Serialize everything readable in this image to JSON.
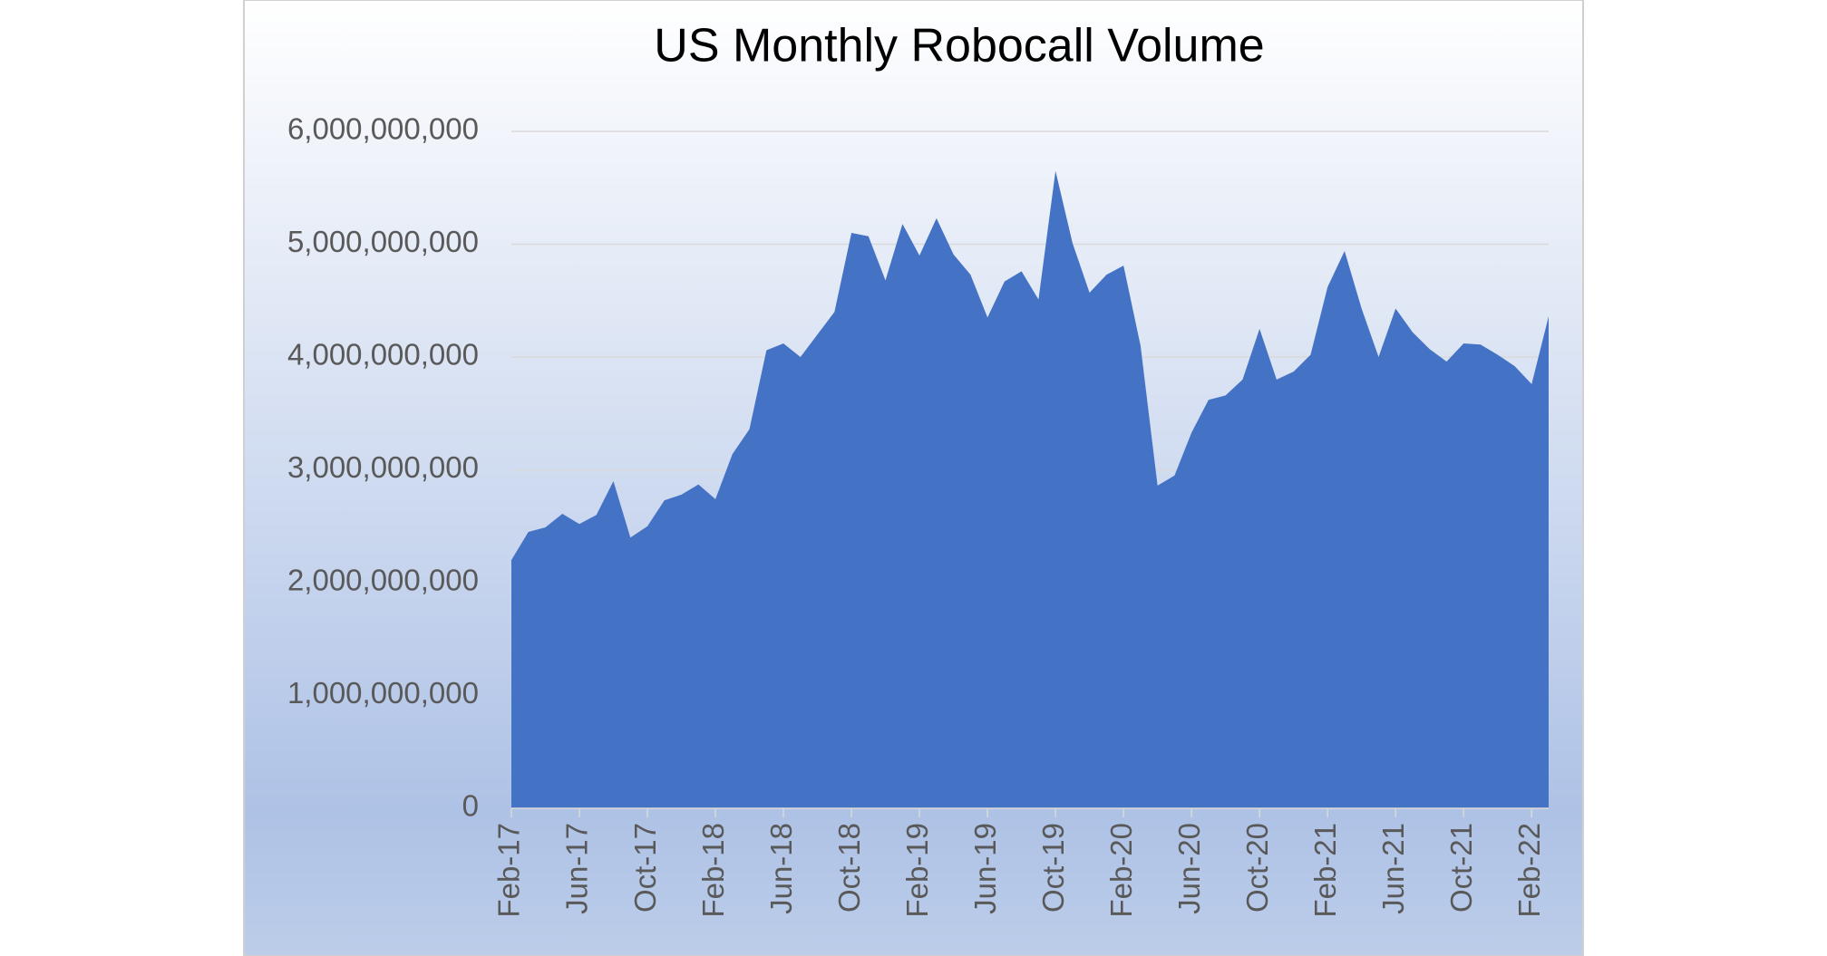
{
  "chart_data": {
    "type": "area",
    "title": "US Monthly Robocall Volume",
    "categories": [
      "Feb-17",
      null,
      null,
      null,
      "Jun-17",
      null,
      null,
      null,
      "Oct-17",
      null,
      null,
      null,
      "Feb-18",
      null,
      null,
      null,
      "Jun-18",
      null,
      null,
      null,
      "Oct-18",
      null,
      null,
      null,
      "Feb-19",
      null,
      null,
      null,
      "Jun-19",
      null,
      null,
      null,
      "Oct-19",
      null,
      null,
      null,
      "Feb-20",
      null,
      null,
      null,
      "Jun-20",
      null,
      null,
      null,
      "Oct-20",
      null,
      null,
      null,
      "Feb-21",
      null,
      null,
      null,
      "Jun-21",
      null,
      null,
      null,
      "Oct-21",
      null,
      null,
      null,
      "Feb-22",
      null
    ],
    "values": [
      2200000000,
      2450000000,
      2490000000,
      2610000000,
      2520000000,
      2600000000,
      2900000000,
      2400000000,
      2500000000,
      2730000000,
      2780000000,
      2870000000,
      2740000000,
      3140000000,
      3360000000,
      4060000000,
      4120000000,
      4000000000,
      4200000000,
      4400000000,
      5100000000,
      5070000000,
      4680000000,
      5180000000,
      4900000000,
      5230000000,
      4910000000,
      4730000000,
      4350000000,
      4670000000,
      4760000000,
      4510000000,
      5650000000,
      5010000000,
      4570000000,
      4730000000,
      4810000000,
      4100000000,
      2860000000,
      2950000000,
      3330000000,
      3620000000,
      3660000000,
      3800000000,
      4250000000,
      3800000000,
      3870000000,
      4020000000,
      4620000000,
      4940000000,
      4430000000,
      4000000000,
      4430000000,
      4220000000,
      4070000000,
      3960000000,
      4120000000,
      4110000000,
      4020000000,
      3920000000,
      3760000000,
      4360000000
    ],
    "color": "#4472c4",
    "ylim": [
      0,
      6000000000
    ],
    "yticks": [
      0,
      {
        "value": 1000000000,
        "label": "1,000,000,000"
      },
      {
        "value": 2000000000,
        "label": "2,000,000,000"
      },
      {
        "value": 3000000000,
        "label": "3,000,000,000"
      },
      {
        "value": 4000000000,
        "label": "4,000,000,000"
      },
      {
        "value": 5000000000,
        "label": "5,000,000,000"
      },
      {
        "value": 6000000000,
        "label": "6,000,000,000"
      }
    ],
    "grid": true
  }
}
